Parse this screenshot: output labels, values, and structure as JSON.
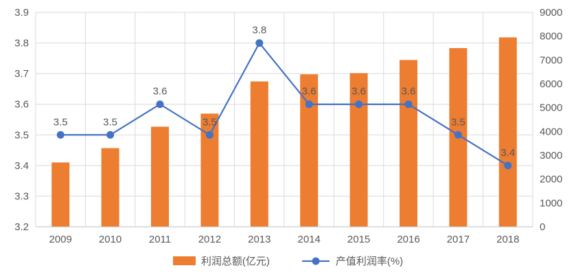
{
  "chart_data": {
    "type": "combo",
    "title": "",
    "categories": [
      "2009",
      "2010",
      "2011",
      "2012",
      "2013",
      "2014",
      "2015",
      "2016",
      "2017",
      "2018"
    ],
    "series": [
      {
        "name": "利润总额(亿元)",
        "type": "bar",
        "axis": "right",
        "color": "#ED7D31",
        "values": [
          2700,
          3300,
          4200,
          4750,
          6100,
          6400,
          6450,
          7000,
          7500,
          7950
        ]
      },
      {
        "name": "产值利润率(%)",
        "type": "line",
        "axis": "left",
        "color": "#4472C4",
        "values": [
          3.5,
          3.5,
          3.6,
          3.5,
          3.8,
          3.6,
          3.6,
          3.6,
          3.5,
          3.4
        ],
        "labels": [
          "3.5",
          "3.5",
          "3.6",
          "3.5",
          "3.8",
          "3.6",
          "3.6",
          "3.6",
          "3.5",
          "3.4"
        ]
      }
    ],
    "axes": {
      "left": {
        "min": 3.2,
        "max": 3.9,
        "step": 0.1,
        "ticks": [
          "3.9",
          "3.8",
          "3.7",
          "3.6",
          "3.5",
          "3.4",
          "3.3",
          "3.2"
        ]
      },
      "right": {
        "min": 0,
        "max": 9000,
        "step": 1000,
        "ticks": [
          "9000",
          "8000",
          "7000",
          "6000",
          "5000",
          "4000",
          "3000",
          "2000",
          "1000",
          "0"
        ]
      }
    },
    "grid": {
      "horizontal": true,
      "vertical": true
    },
    "legend_position": "bottom",
    "colors": {
      "grid": "#D9D9D9",
      "axis": "#BFBFBF",
      "text": "#595959",
      "label": "#404040",
      "background": "#FFFFFF"
    }
  }
}
